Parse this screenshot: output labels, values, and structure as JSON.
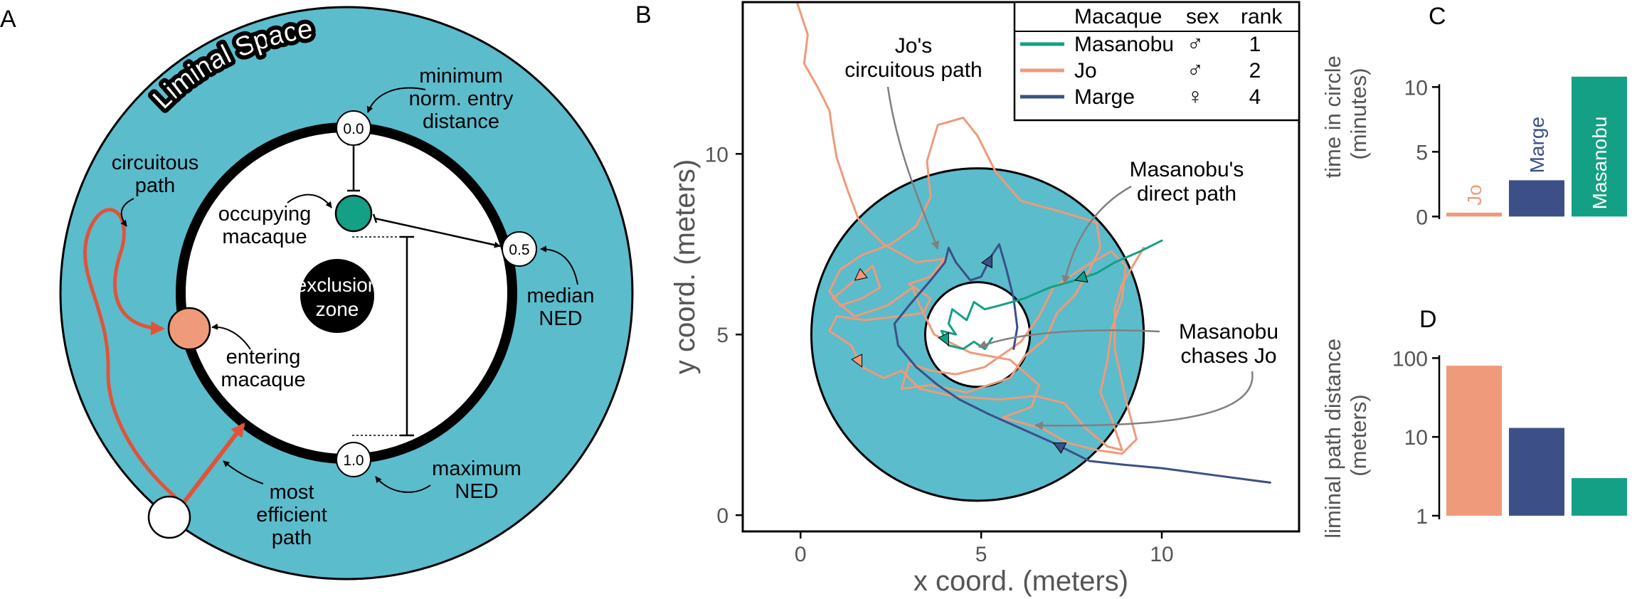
{
  "panels": {
    "a": {
      "letter": "A",
      "banner": "Liminal Space",
      "labels": {
        "min_l1": "minimum",
        "min_l2": "norm. entry",
        "min_l3": "distance",
        "circ_l1": "circuitous",
        "circ_l2": "path",
        "occ_l1": "occupying",
        "occ_l2": "macaque",
        "excl_l1": "exclusion",
        "excl_l2": "zone",
        "med_l1": "median",
        "med_l2": "NED",
        "ent_l1": "entering",
        "ent_l2": "macaque",
        "max_l1": "maximum",
        "max_l2": "NED",
        "eff_l1": "most",
        "eff_l2": "efficient",
        "eff_l3": "path"
      },
      "markers": {
        "m0": "0.0",
        "m05": "0.5",
        "m10": "1.0"
      }
    },
    "b": {
      "letter": "B"
    },
    "c": {
      "letter": "C"
    },
    "d": {
      "letter": "D"
    }
  },
  "colors": {
    "liminal": "#5bbccc",
    "masanobu": "#14a085",
    "jo": "#ef9a7a",
    "marge": "#3c5087",
    "arrow_red": "#e0533a",
    "annot_gray": "#808080"
  },
  "chart_data": [
    {
      "id": "B",
      "type": "line",
      "xlabel": "x coord. (meters)",
      "ylabel": "y coord. (meters)",
      "xlim": [
        -1.6,
        13.8
      ],
      "ylim": [
        -0.45,
        14.2
      ],
      "xticks": [
        0,
        5,
        10
      ],
      "yticks": [
        0,
        5,
        10
      ],
      "circles": {
        "center": [
          4.9,
          5.0
        ],
        "outer_radius": 4.6,
        "inner_radius": 1.45
      },
      "legend": {
        "header": {
          "name": "Macaque",
          "sex": "sex",
          "rank": "rank"
        },
        "placement": "top-right",
        "rows": [
          {
            "name": "Masanobu",
            "sex": "♂",
            "rank": "1"
          },
          {
            "name": "Jo",
            "sex": "♂",
            "rank": "2"
          },
          {
            "name": "Marge",
            "sex": "♀",
            "rank": "4"
          }
        ]
      },
      "annotations": {
        "jo_l1": "Jo's",
        "jo_l2": "circuitous path",
        "mas_l1": "Masanobu's",
        "mas_l2": "direct path",
        "chase_l1": "Masanobu",
        "chase_l2": "chases Jo"
      },
      "series": [
        {
          "name": "Jo",
          "points": [
            [
              -0.1,
              14.2
            ],
            [
              0.2,
              13.3
            ],
            [
              0.1,
              12.5
            ],
            [
              0.5,
              11.8
            ],
            [
              0.8,
              11.2
            ],
            [
              0.9,
              10.5
            ],
            [
              1.0,
              9.9
            ],
            [
              1.3,
              9.0
            ],
            [
              1.6,
              8.2
            ],
            [
              2.3,
              7.5
            ],
            [
              3.2,
              7.0
            ],
            [
              4.0,
              7.1
            ],
            [
              3.6,
              6.6
            ],
            [
              3.0,
              6.4
            ],
            [
              3.6,
              6.0
            ],
            [
              3.4,
              5.6
            ],
            [
              2.7,
              5.5
            ],
            [
              1.8,
              5.4
            ],
            [
              1.0,
              5.5
            ],
            [
              0.8,
              5.1
            ],
            [
              1.4,
              4.7
            ],
            [
              1.7,
              4.1
            ],
            [
              2.3,
              3.8
            ],
            [
              2.8,
              4.0
            ],
            [
              3.3,
              3.5
            ],
            [
              4.2,
              3.3
            ],
            [
              5.5,
              3.2
            ],
            [
              6.5,
              3.3
            ],
            [
              7.3,
              3.1
            ],
            [
              7.9,
              2.4
            ],
            [
              8.5,
              1.9
            ],
            [
              8.9,
              1.8
            ],
            [
              8.6,
              2.7
            ],
            [
              8.3,
              3.4
            ],
            [
              8.5,
              4.3
            ],
            [
              8.6,
              5.1
            ],
            [
              8.9,
              6.0
            ],
            [
              9.0,
              6.9
            ],
            [
              8.6,
              7.3
            ],
            [
              7.9,
              6.9
            ],
            [
              7.0,
              6.3
            ],
            [
              6.6,
              5.5
            ],
            [
              6.1,
              4.8
            ],
            [
              5.1,
              4.1
            ],
            [
              4.3,
              3.9
            ],
            [
              3.6,
              4.0
            ],
            [
              3.0,
              4.2
            ],
            [
              2.8,
              3.5
            ],
            [
              3.6,
              3.6
            ],
            [
              4.6,
              3.4
            ],
            [
              5.8,
              3.8
            ],
            [
              6.2,
              4.4
            ],
            [
              6.8,
              4.9
            ],
            [
              7.1,
              5.6
            ],
            [
              7.6,
              6.1
            ],
            [
              8.0,
              6.8
            ],
            [
              8.3,
              7.4
            ],
            [
              8.2,
              8.1
            ],
            [
              7.2,
              8.4
            ],
            [
              6.1,
              8.7
            ],
            [
              5.4,
              9.5
            ],
            [
              4.9,
              10.5
            ],
            [
              4.5,
              11.0
            ],
            [
              3.8,
              10.8
            ],
            [
              3.5,
              9.8
            ],
            [
              3.6,
              8.8
            ],
            [
              3.2,
              8.0
            ],
            [
              2.5,
              7.5
            ],
            [
              1.7,
              7.2
            ],
            [
              1.1,
              6.8
            ],
            [
              0.8,
              6.2
            ],
            [
              1.1,
              5.8
            ],
            [
              1.7,
              6.0
            ],
            [
              2.2,
              6.3
            ],
            [
              2.0,
              6.9
            ],
            [
              1.5,
              6.5
            ],
            [
              0.9,
              6.0
            ],
            [
              1.5,
              5.5
            ],
            [
              2.4,
              5.8
            ],
            [
              3.1,
              6.3
            ],
            [
              3.3,
              5.8
            ],
            [
              3.7,
              5.0
            ],
            [
              4.7,
              4.5
            ],
            [
              5.8,
              4.3
            ],
            [
              6.6,
              3.6
            ],
            [
              6.4,
              3.0
            ],
            [
              5.6,
              2.7
            ],
            [
              6.7,
              2.4
            ],
            [
              7.4,
              2.0
            ],
            [
              8.2,
              1.8
            ],
            [
              8.9,
              1.7
            ],
            [
              9.3,
              2.1
            ],
            [
              9.0,
              3.2
            ],
            [
              8.7,
              4.6
            ],
            [
              8.7,
              5.7
            ],
            [
              8.9,
              6.4
            ],
            [
              9.5,
              7.4
            ]
          ]
        },
        {
          "name": "Marge",
          "points": [
            [
              13.0,
              0.9
            ],
            [
              11.5,
              1.1
            ],
            [
              10.0,
              1.3
            ],
            [
              8.9,
              1.4
            ],
            [
              8.0,
              1.5
            ],
            [
              7.0,
              2.0
            ],
            [
              6.1,
              2.4
            ],
            [
              5.2,
              2.8
            ],
            [
              4.4,
              3.2
            ],
            [
              3.8,
              3.6
            ],
            [
              3.2,
              4.1
            ],
            [
              2.7,
              4.7
            ],
            [
              2.6,
              5.3
            ],
            [
              3.0,
              5.8
            ],
            [
              3.6,
              6.5
            ],
            [
              4.0,
              7.0
            ],
            [
              4.1,
              7.4
            ],
            [
              4.3,
              7.0
            ],
            [
              4.7,
              6.5
            ],
            [
              5.0,
              6.6
            ],
            [
              5.3,
              7.2
            ],
            [
              5.5,
              7.5
            ],
            [
              5.7,
              6.8
            ],
            [
              5.9,
              6.0
            ],
            [
              6.0,
              5.2
            ],
            [
              5.9,
              4.6
            ]
          ]
        },
        {
          "name": "Masanobu",
          "points": [
            [
              10.0,
              7.6
            ],
            [
              9.4,
              7.3
            ],
            [
              8.7,
              7.0
            ],
            [
              8.2,
              6.7
            ],
            [
              7.6,
              6.5
            ],
            [
              6.9,
              6.3
            ],
            [
              6.2,
              6.0
            ],
            [
              5.5,
              5.8
            ],
            [
              5.1,
              5.7
            ],
            [
              4.8,
              5.9
            ],
            [
              4.6,
              5.4
            ],
            [
              4.2,
              5.7
            ],
            [
              4.1,
              5.3
            ],
            [
              4.3,
              5.0
            ],
            [
              3.9,
              5.1
            ],
            [
              4.1,
              4.7
            ],
            [
              4.5,
              4.6
            ],
            [
              4.8,
              4.8
            ],
            [
              5.1,
              4.6
            ],
            [
              5.3,
              4.9
            ]
          ]
        }
      ]
    },
    {
      "id": "C",
      "type": "bar",
      "ylabel": "time in circle (minutes)",
      "ylim": [
        -0.2,
        12.6
      ],
      "yticks": [
        0,
        5,
        10
      ],
      "categories": [
        "Jo",
        "Marge",
        "Masanobu"
      ],
      "values": [
        0.3,
        2.8,
        10.8
      ]
    },
    {
      "id": "D",
      "type": "bar",
      "ylabel": "liminal path distance (meters)",
      "scale": "log",
      "ylim": [
        0.9,
        200
      ],
      "yticks": [
        1,
        10,
        100
      ],
      "categories": [
        "Jo",
        "Marge",
        "Masanobu"
      ],
      "values": [
        80,
        13,
        3
      ]
    }
  ]
}
